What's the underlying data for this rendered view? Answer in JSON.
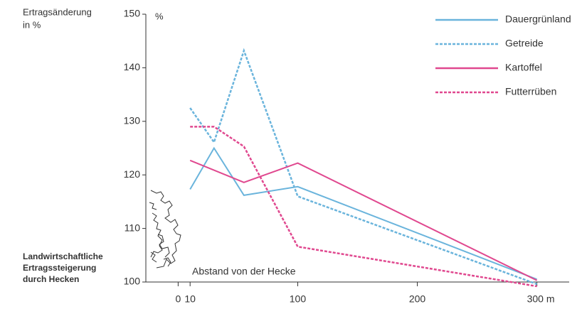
{
  "chart_data": {
    "type": "line",
    "y_label": [
      "Ertragsänderung",
      "in %"
    ],
    "y_unit": "%",
    "caption": [
      "Landwirtschaftliche",
      "Ertragssteigerung",
      "durch Hecken"
    ],
    "annotation": "Abstand von der Hecke",
    "xlim": [
      -27,
      327
    ],
    "ylim": [
      100,
      150
    ],
    "xticks": [
      0,
      10,
      100,
      200,
      {
        "value": 300,
        "label": "300 m"
      }
    ],
    "yticks": [
      100,
      110,
      120,
      130,
      140,
      150
    ],
    "series": [
      {
        "name": "Dauergrünland",
        "color": "#6ab4dc",
        "linestyle": "solid",
        "x": [
          10,
          30,
          55,
          100,
          300
        ],
        "values": [
          117.3,
          125,
          116.2,
          117.8,
          100.5
        ]
      },
      {
        "name": "Getreide",
        "color": "#6ab4dc",
        "linestyle": "dashed",
        "x": [
          10,
          30,
          55,
          100,
          300
        ],
        "values": [
          132.5,
          126.1,
          143.2,
          116,
          99.6
        ]
      },
      {
        "name": "Kartoffel",
        "color": "#e0488f",
        "linestyle": "solid",
        "x": [
          10,
          55,
          100,
          300
        ],
        "values": [
          122.7,
          118.6,
          122.2,
          100.3
        ]
      },
      {
        "name": "Futterrüben",
        "color": "#e0488f",
        "linestyle": "dashed",
        "x": [
          10,
          30,
          55,
          100,
          300
        ],
        "values": [
          129,
          129,
          125.3,
          106.6,
          99.2
        ]
      }
    ]
  }
}
